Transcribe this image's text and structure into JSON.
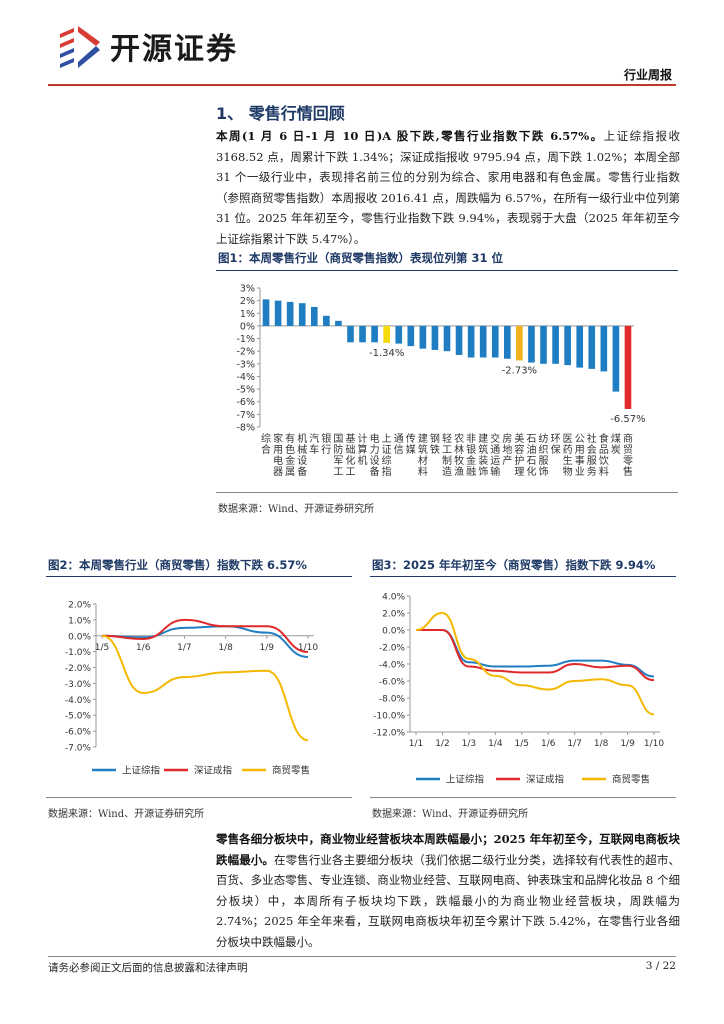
{
  "header": {
    "brand": "开源证券",
    "tag": "行业周报"
  },
  "section": {
    "title": "1、 零售行情回顾"
  },
  "para1": {
    "lead": "本周(1 月 6 日-1 月 10 日)A 股下跌,零售行业指数下跌 6.57%。",
    "body": "上证综指报收 3168.52 点，周累计下跌 1.34%；深证成指报收 9795.94 点，周下跌 1.02%；本周全部 31 个一级行业中，表现排名前三位的分别为综合、家用电器和有色金属。零售行业指数（参照商贸零售指数）本周报收 2016.41 点，周跌幅为 6.57%，在所有一级行业中位列第 31 位。2025 年年初至今，零售行业指数下跌 9.94%，表现弱于大盘（2025 年年初至今上证综指累计下跌 5.47%）。"
  },
  "figures": {
    "fig1_title": "图1：本周零售行业（商贸零售指数）表现位列第 31 位",
    "fig1_source": "数据来源：Wind、开源证券研究所",
    "fig2_title": "图2：本周零售行业（商贸零售）指数下跌 6.57%",
    "fig2_source": "数据来源：Wind、开源证券研究所",
    "fig3_title": "图3：2025 年年初至今（商贸零售）指数下跌 9.94%",
    "fig3_source": "数据来源：Wind、开源证券研究所"
  },
  "para2": {
    "lead": "零售各细分板块中，商业物业经营板块本周跌幅最小；2025 年年初至今，互联网电商板块跌幅最小。",
    "body": "在零售行业各主要细分板块（我们依据二级行业分类，选择较有代表性的超市、百货、多业态零售、专业连锁、商业物业经营、互联网电商、钟表珠宝和品牌化妆品 8 个细分板块）中，本周所有子板块均下跌，跌幅最小的为商业物业经营板块，周跌幅为 2.74%；2025 年全年来看，互联网电商板块年初至今累计下跌 5.42%，在零售行业各细分板块中跌幅最小。"
  },
  "footer": {
    "note": "请务必参阅正文后面的信息披露和法律声明",
    "page": "3 / 22"
  },
  "chart_data": [
    {
      "type": "bar",
      "categories": [
        "综合",
        "家用电器",
        "有色金属",
        "机械设备",
        "汽车",
        "银行",
        "国防军工",
        "基础化工",
        "计算机",
        "电力设备",
        "上证综指",
        "通信",
        "传媒",
        "建筑材料",
        "钢铁",
        "轻工制造",
        "农林牧渔",
        "非银金融",
        "建筑装饰",
        "交通运输",
        "房地产",
        "美容护理",
        "石油石化",
        "纺织服饰",
        "环保",
        "医药生物",
        "公用事业",
        "社会服务",
        "食品饮料",
        "煤炭",
        "商贸零售"
      ],
      "values": [
        2.1,
        2.0,
        1.9,
        1.8,
        1.5,
        0.8,
        0.4,
        -1.3,
        -1.3,
        -1.3,
        -1.34,
        -1.4,
        -1.6,
        -1.8,
        -1.9,
        -2.0,
        -2.3,
        -2.5,
        -2.5,
        -2.5,
        -2.6,
        -2.73,
        -2.9,
        -3.0,
        -3.0,
        -3.1,
        -3.3,
        -3.4,
        -3.6,
        -5.2,
        -6.57
      ],
      "highlight": {
        "上证综指": "#f5d90a",
        "美容护理": "#f2b11b",
        "商贸零售": "#e0292a"
      },
      "bar_color": "#1f7ec2",
      "labels": [
        {
          "category": "上证综指",
          "text": "-1.34%"
        },
        {
          "category": "美容护理",
          "text": "-2.73%"
        },
        {
          "category": "商贸零售",
          "text": "-6.57%"
        }
      ],
      "yticks": [
        "3%",
        "2%",
        "1%",
        "0%",
        "-1%",
        "-2%",
        "-3%",
        "-4%",
        "-5%",
        "-6%",
        "-7%",
        "-8%"
      ],
      "ylim": [
        -8,
        3
      ]
    },
    {
      "type": "line",
      "x": [
        "1/5",
        "1/6",
        "1/7",
        "1/8",
        "1/9",
        "1/10"
      ],
      "yticks": [
        "2.0%",
        "1.0%",
        "0.0%",
        "-1.0%",
        "-2.0%",
        "-3.0%",
        "-4.0%",
        "-5.0%",
        "-6.0%",
        "-7.0%"
      ],
      "ylim": [
        -7,
        2
      ],
      "series": [
        {
          "name": "上证综指",
          "color": "#1f7ec2",
          "values": [
            0,
            -0.1,
            0.5,
            0.6,
            0.2,
            -1.34
          ]
        },
        {
          "name": "深证成指",
          "color": "#e0292a",
          "values": [
            0,
            -0.2,
            1.0,
            0.6,
            0.6,
            -1.02
          ]
        },
        {
          "name": "商贸零售",
          "color": "#f5b800",
          "values": [
            0,
            -3.6,
            -2.6,
            -2.3,
            -2.2,
            -6.57
          ]
        }
      ]
    },
    {
      "type": "line",
      "x": [
        "1/1",
        "1/2",
        "1/3",
        "1/4",
        "1/5",
        "1/6",
        "1/7",
        "1/8",
        "1/9",
        "1/10"
      ],
      "yticks": [
        "4.0%",
        "2.0%",
        "0.0%",
        "-2.0%",
        "-4.0%",
        "-6.0%",
        "-8.0%",
        "-10.0%",
        "-12.0%"
      ],
      "ylim": [
        -12,
        4
      ],
      "series": [
        {
          "name": "上证综指",
          "color": "#1f7ec2",
          "values": [
            0,
            0,
            -3.8,
            -4.3,
            -4.3,
            -4.2,
            -3.6,
            -3.6,
            -4.1,
            -5.47
          ]
        },
        {
          "name": "深证成指",
          "color": "#e0292a",
          "values": [
            0,
            0,
            -4.3,
            -4.8,
            -5.0,
            -5.0,
            -4.0,
            -4.4,
            -4.2,
            -5.9
          ]
        },
        {
          "name": "商贸零售",
          "color": "#f5b800",
          "values": [
            0,
            2.0,
            -3.4,
            -5.4,
            -6.5,
            -7.0,
            -6.0,
            -5.8,
            -6.5,
            -9.94
          ]
        }
      ]
    }
  ]
}
